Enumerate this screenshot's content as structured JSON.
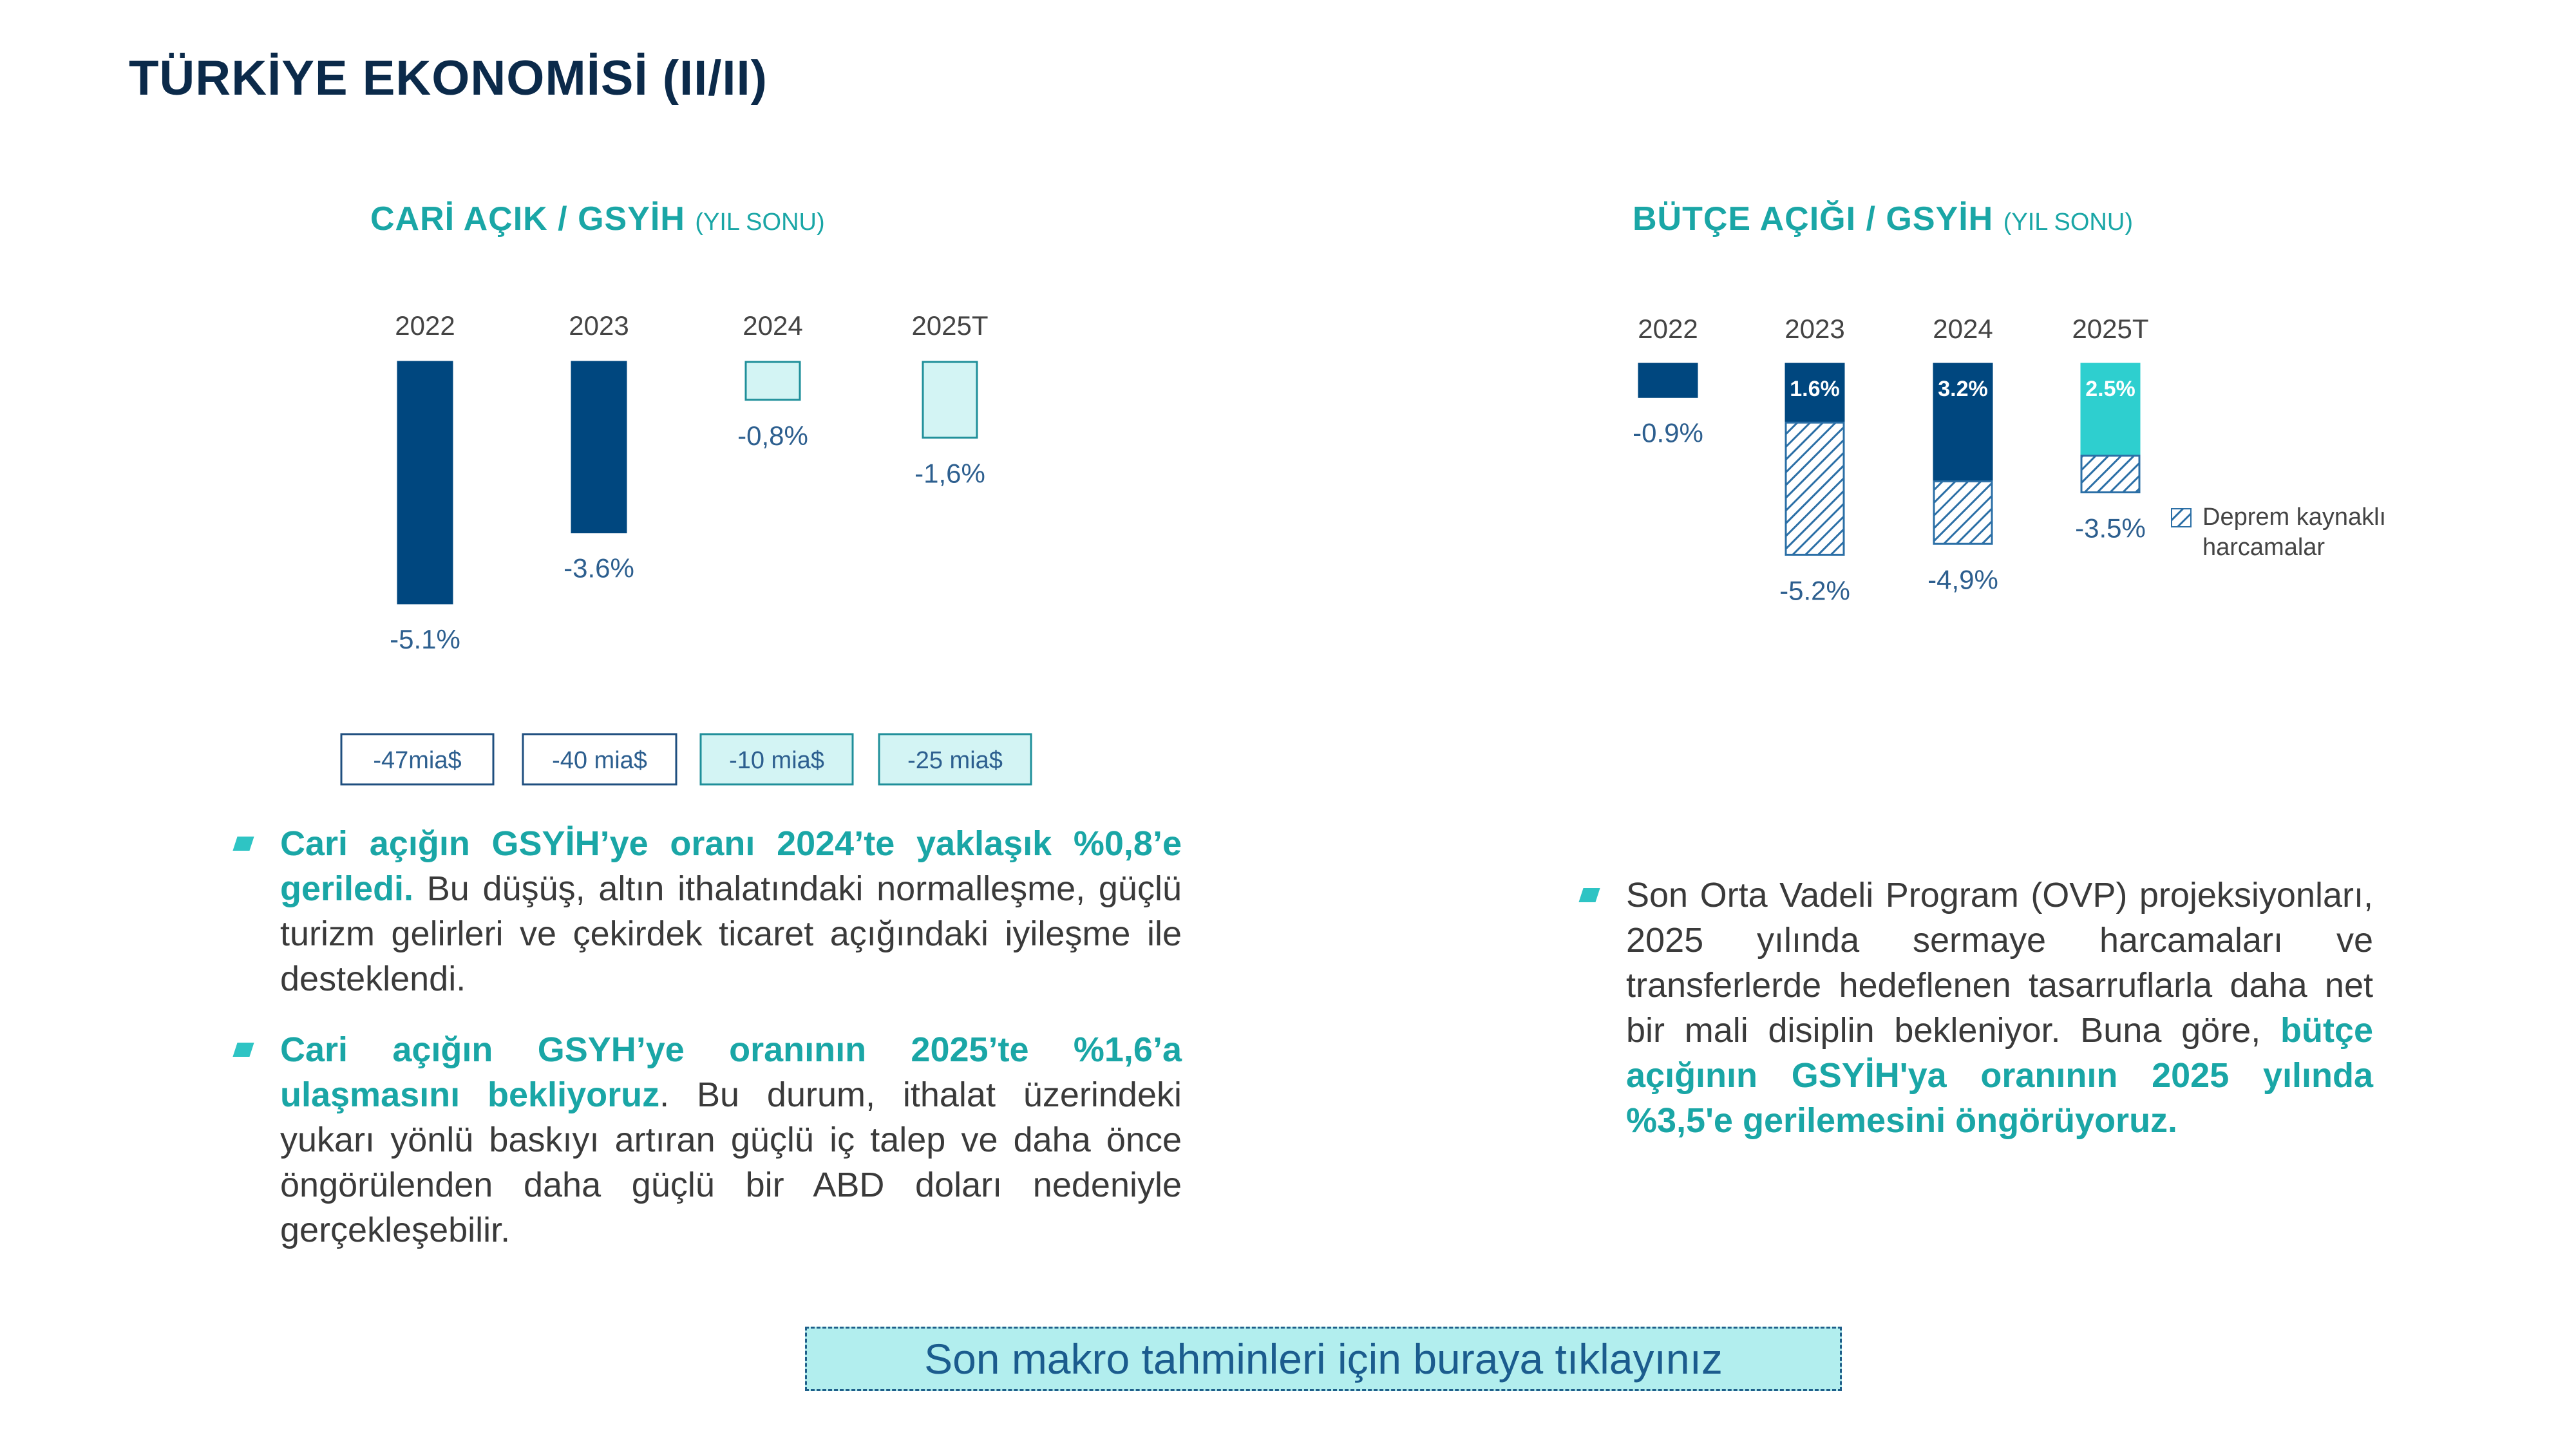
{
  "page": {
    "title": "TÜRKİYE EKONOMİSİ (II/II)"
  },
  "colors": {
    "navy": "#00477f",
    "light": "#d3f4f4",
    "teal": "#2ecfcf",
    "hatch": "#2b6fa6",
    "title_teal": "#1aa6a6"
  },
  "left_chart": {
    "title": "CARİ AÇIK / GSYİH",
    "subtitle": "(YIL SONU)"
  },
  "right_chart": {
    "title": "BÜTÇE AÇIĞI / GSYİH",
    "subtitle": "(YIL SONU)"
  },
  "chart_data": [
    {
      "type": "bar",
      "title": "CARİ AÇIK / GSYİH",
      "subtitle": "(YIL SONU)",
      "categories": [
        "2022",
        "2023",
        "2024",
        "2025T"
      ],
      "values": [
        -5.1,
        -3.6,
        -0.8,
        -1.6
      ],
      "value_labels": [
        "-5.1%",
        "-3.6%",
        "-0,8%",
        "-1,6%"
      ],
      "bar_styles": [
        "navy",
        "navy",
        "light",
        "light"
      ],
      "amounts": [
        "-47mia$",
        "-40 mia$",
        "-10 mia$",
        "-25 mia$"
      ],
      "ylim": [
        -5.5,
        0
      ]
    },
    {
      "type": "bar",
      "title": "BÜTÇE AÇIĞI / GSYİH",
      "subtitle": "(YIL SONU)",
      "categories": [
        "2022",
        "2023",
        "2024",
        "2025T"
      ],
      "series": [
        {
          "values": [
            -0.9,
            -1.6,
            -3.2,
            -2.5
          ],
          "inner_labels": [
            "",
            "1.6%",
            "3.2%",
            "2.5%"
          ]
        },
        {
          "name": "Deprem kaynaklı harcamalar",
          "values": [
            0,
            -3.6,
            -1.7,
            -1.0
          ]
        }
      ],
      "total_labels": [
        "-0.9%",
        "-5.2%",
        "-4,9%",
        "-3.5%"
      ],
      "bar_styles": [
        "navy",
        "navy",
        "navy",
        "teal"
      ],
      "legend": [
        "Deprem kaynaklı",
        "harcamalar"
      ],
      "ylim": [
        -5.5,
        0
      ]
    }
  ],
  "left_bullets": [
    {
      "bold": "Cari açığın GSYİH’ye oranı 2024’te yaklaşık %0,8’e geriledi.",
      "text": " Bu düşüş, altın ithalatındaki normalleşme, güçlü turizm gelirleri ve çekirdek ticaret açığındaki iyileşme ile desteklendi."
    },
    {
      "bold": "Cari açığın GSYH’ye oranının 2025’te %1,6’a ulaşmasını bekliyoruz",
      "text": ". Bu durum, ithalat üzerindeki yukarı yönlü baskıyı artıran güçlü iç talep ve daha önce öngörülenden daha güçlü bir ABD doları nedeniyle gerçekleşebilir."
    }
  ],
  "right_bullets": [
    {
      "text": "Son Orta Vadeli Program (OVP) projeksiyonları, 2025 yılında sermaye harcamaları ve transferlerde hedeflenen tasarruflarla daha net bir mali disiplin bekleniyor. Buna göre, ",
      "bold": "bütçe açığının GSYİH'ya oranının 2025 yılında %3,5'e gerilemesini öngörüyoruz."
    }
  ],
  "link": {
    "label": "Son makro tahminleri için buraya tıklayınız"
  }
}
